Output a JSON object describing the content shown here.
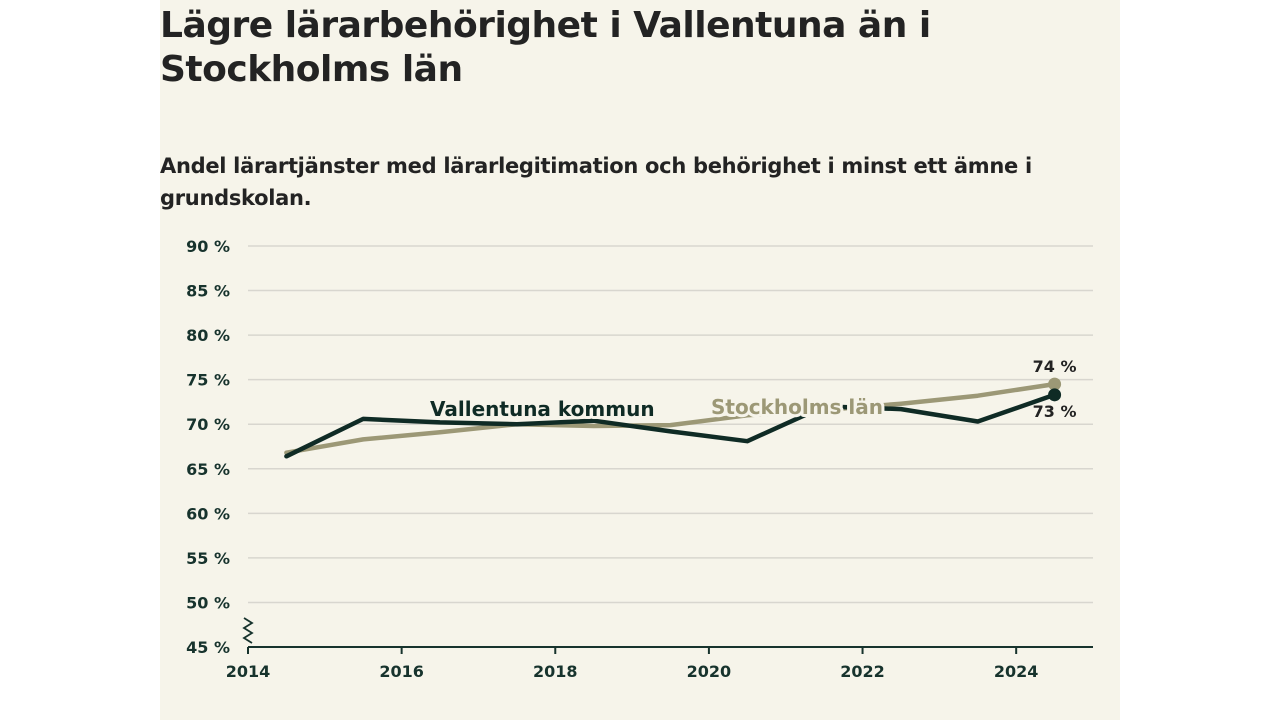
{
  "chart_data": {
    "type": "line",
    "title": "Lägre lärarbehörighet i Vallentuna än i Stockholms län",
    "subtitle": "Andel lärartjänster med lärarlegitimation och behörighet i minst ett ämne i grundskolan.",
    "xlabel": "",
    "ylabel": "",
    "xlim": [
      2014,
      2025
    ],
    "ylim": [
      45,
      90
    ],
    "x_ticks": [
      "2014",
      "2016",
      "2018",
      "2020",
      "2022",
      "2024"
    ],
    "y_ticks": [
      "45 %",
      "50 %",
      "55 %",
      "60 %",
      "65 %",
      "70 %",
      "75 %",
      "80 %",
      "85 %",
      "90 %"
    ],
    "grid": true,
    "axis_break": true,
    "series": [
      {
        "name": "Vallentuna kommun",
        "color": "#0f2b25",
        "x": [
          2014.5,
          2015.5,
          2016.5,
          2017.5,
          2018.5,
          2019.5,
          2020.5,
          2021.5,
          2022.5,
          2023.5,
          2024.5
        ],
        "values": [
          66.4,
          70.6,
          70.2,
          70.0,
          70.4,
          69.2,
          68.1,
          72.0,
          71.7,
          70.3,
          73.3
        ],
        "end_label": "73 %"
      },
      {
        "name": "Stockholms län",
        "color": "#9c9876",
        "x": [
          2014.5,
          2015.5,
          2016.5,
          2017.5,
          2018.5,
          2019.5,
          2020.5,
          2021.5,
          2022.5,
          2023.5,
          2024.5
        ],
        "values": [
          66.8,
          68.3,
          69.1,
          70.0,
          69.8,
          69.9,
          71.0,
          71.6,
          72.3,
          73.2,
          74.5
        ],
        "end_label": "74 %"
      }
    ]
  },
  "colors": {
    "background": "#f6f4ea",
    "grid": "#d8d6cf",
    "text": "#232323",
    "axis": "#17332d"
  }
}
